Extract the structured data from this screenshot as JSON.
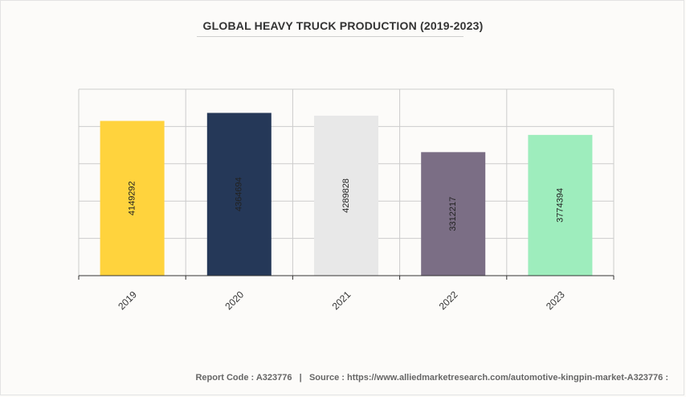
{
  "title": "GLOBAL HEAVY TRUCK PRODUCTION (2019-2023)",
  "footer": {
    "report_label": "Report Code : A323776",
    "separator": "|",
    "source_label": "Source : https://www.alliedmarketresearch.com/automotive-kingpin-market-A323776 :"
  },
  "chart_data": {
    "type": "bar",
    "title": "GLOBAL HEAVY TRUCK PRODUCTION (2019-2023)",
    "categories": [
      "2019",
      "2020",
      "2021",
      "2022",
      "2023"
    ],
    "values": [
      4149292,
      4364694,
      4289828,
      3312217,
      3774394
    ],
    "data_labels": [
      "4149292",
      "4364694",
      "4289828",
      "3312217",
      "3774394"
    ],
    "colors": [
      "#ffd33d",
      "#253858",
      "#e8e8e8",
      "#7b6e85",
      "#9eedbd"
    ],
    "xlabel": "",
    "ylabel": "",
    "ylim": [
      0,
      5000000
    ],
    "grid": true,
    "legend": "none"
  }
}
